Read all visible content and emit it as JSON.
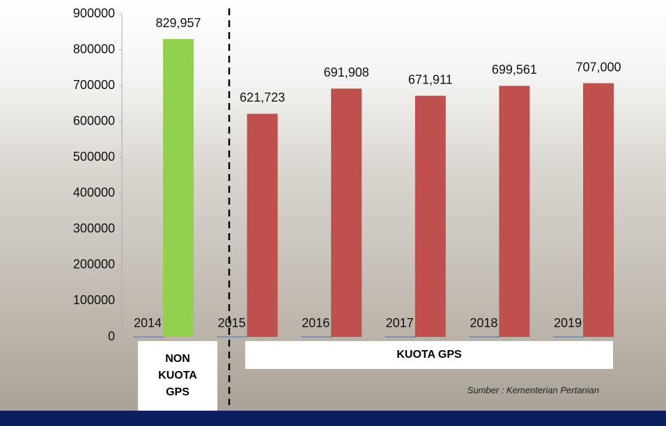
{
  "chart_data": {
    "type": "bar",
    "categories": [
      "2014",
      "2015",
      "2016",
      "2017",
      "2018",
      "2019"
    ],
    "values": [
      829957,
      621723,
      691908,
      671911,
      699561,
      707000
    ],
    "value_labels": [
      "829,957",
      "621,723",
      "691,908",
      "671,911",
      "699,561",
      "707,000"
    ],
    "colors": [
      "#92d050",
      "#c0504d",
      "#c0504d",
      "#c0504d",
      "#c0504d",
      "#c0504d"
    ],
    "ylim": [
      0,
      900000
    ],
    "yticks": [
      0,
      100000,
      200000,
      300000,
      400000,
      500000,
      600000,
      700000,
      800000,
      900000
    ],
    "group_labels": [
      "NON KUOTA GPS",
      "KUOTA GPS"
    ],
    "source": "Sumber : Kementerian Pertanian"
  }
}
